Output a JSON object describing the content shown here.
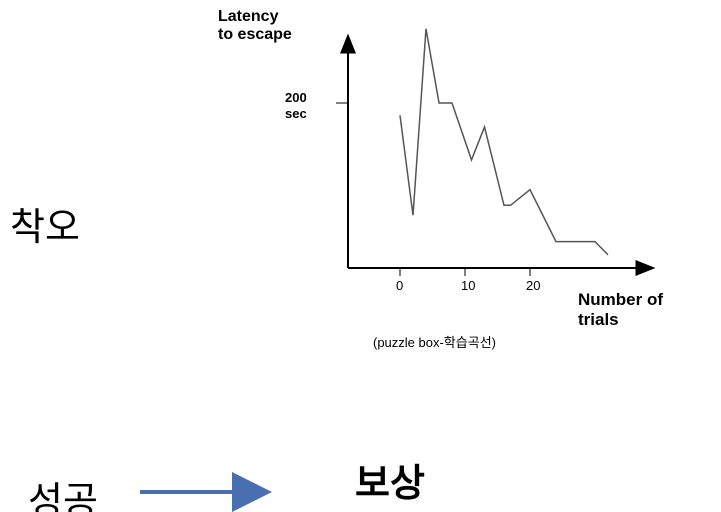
{
  "chart_data": {
    "type": "line",
    "y_label": "Latency\nto escape",
    "x_label": "Number of\ntrials",
    "caption": "(puzzle box-학습곡선)",
    "x": [
      0,
      2,
      4,
      6,
      8,
      11,
      13,
      16,
      17,
      20,
      24,
      30,
      32
    ],
    "series": [
      {
        "color": "#555555",
        "values": [
          185,
          64,
          290,
          200,
          200,
          131,
          171,
          76,
          76,
          95,
          32,
          32,
          16
        ]
      }
    ],
    "xlim": [
      -8,
      39
    ],
    "ylim": [
      0,
      300
    ],
    "xticks": [
      0,
      10,
      20
    ],
    "yticks": [
      {
        "value": 200,
        "label": "200\nsec"
      }
    ]
  },
  "slide": {
    "left_label": "착오",
    "bottom_left": "성공",
    "bottom_right": "보상"
  }
}
